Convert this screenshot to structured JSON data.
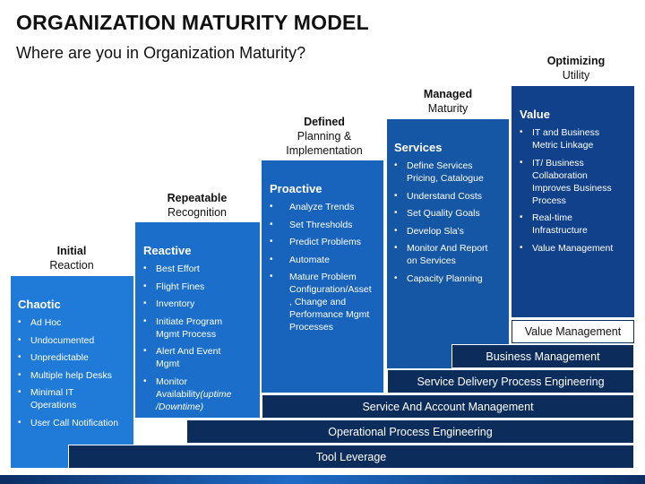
{
  "title": "ORGANIZATION MATURITY MODEL",
  "subtitle": "Where are you in Organization Maturity?",
  "stages": [
    {
      "label_bold": "Initial",
      "label_sub": "Reaction",
      "heading": "Chaotic",
      "color": "#1f7ad8",
      "items": [
        "Ad Hoc",
        "Undocumented",
        "Unpredictable",
        "Multiple help Desks",
        "Minimal IT Operations",
        "User Call Notification"
      ]
    },
    {
      "label_bold": "Repeatable",
      "label_sub": "Recognition",
      "heading": "Reactive",
      "color": "#1b6fcb",
      "items": [
        "Best Effort",
        "Flight Fines",
        "Inventory",
        "Initiate Program Mgmt Process",
        "Alert And Event Mgmt"
      ],
      "last_item_text": "Monitor Availability",
      "last_item_italic": "(uptime /Downtime)"
    },
    {
      "label_bold": "Defined",
      "label_sub": "Planning & Implementation",
      "heading": "Proactive",
      "color": "#1864bd",
      "items": [
        "Analyze Trends",
        "Set Thresholds",
        "Predict Problems",
        "Automate",
        "Mature Problem Configuration/Asset , Change and Performance Mgmt  Processes"
      ]
    },
    {
      "label_bold": "Managed",
      "label_sub": "Maturity",
      "heading": "Services",
      "color": "#1556a5",
      "items": [
        "Define Services Pricing, Catalogue",
        "Understand Costs",
        "Set Quality Goals",
        "Develop Sla's",
        "Monitor And Report on Services",
        "Capacity Planning"
      ]
    },
    {
      "label_bold": "Optimizing",
      "label_sub": "Utility",
      "heading": "Value",
      "color": "#10418a",
      "items": [
        "IT and Business Metric Linkage",
        "IT/ Business Collaboration Improves Business Process",
        "Real-time Infrastructure",
        "Value Management"
      ]
    }
  ],
  "bands": [
    "Value Management",
    "Business Management",
    "Service Delivery Process Engineering",
    "Service And Account Management",
    "Operational Process Engineering",
    "Tool Leverage"
  ]
}
